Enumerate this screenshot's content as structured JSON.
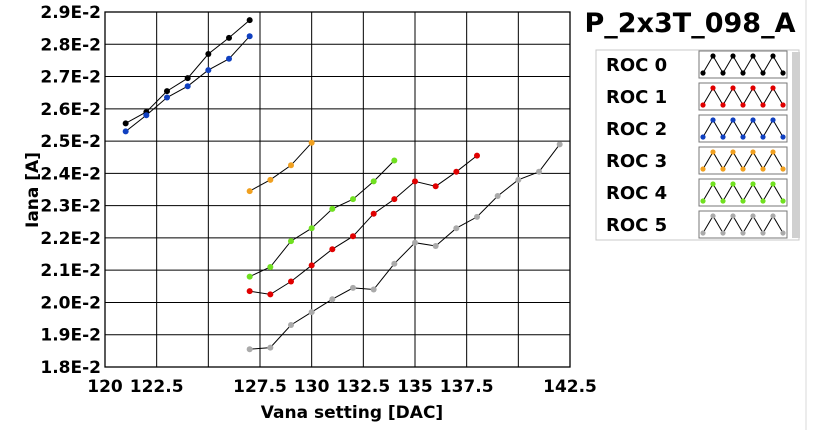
{
  "chart_data": {
    "type": "line",
    "title": "P_2x3T_098_A",
    "xlabel": "Vana setting [DAC]",
    "ylabel": "Iana [A]",
    "xlim": [
      120,
      142.5
    ],
    "ylim": [
      0.018,
      0.029
    ],
    "x_ticks": [
      {
        "v": 120,
        "label": "120"
      },
      {
        "v": 122.5,
        "label": "122.5"
      },
      {
        "v": 127.5,
        "label": "127.5"
      },
      {
        "v": 130,
        "label": "130"
      },
      {
        "v": 132.5,
        "label": "132.5"
      },
      {
        "v": 135,
        "label": "135"
      },
      {
        "v": 137.5,
        "label": "137.5"
      },
      {
        "v": 142.5,
        "label": "142.5"
      }
    ],
    "x_grid": [
      120,
      122.5,
      125,
      127.5,
      130,
      132.5,
      135,
      137.5,
      140,
      142.5
    ],
    "y_ticks": [
      {
        "v": 0.018,
        "label": "1.8E-2"
      },
      {
        "v": 0.019,
        "label": "1.9E-2"
      },
      {
        "v": 0.02,
        "label": "2.0E-2"
      },
      {
        "v": 0.021,
        "label": "2.1E-2"
      },
      {
        "v": 0.022,
        "label": "2.2E-2"
      },
      {
        "v": 0.023,
        "label": "2.3E-2"
      },
      {
        "v": 0.024,
        "label": "2.4E-2"
      },
      {
        "v": 0.025,
        "label": "2.5E-2"
      },
      {
        "v": 0.026,
        "label": "2.6E-2"
      },
      {
        "v": 0.027,
        "label": "2.7E-2"
      },
      {
        "v": 0.028,
        "label": "2.8E-2"
      },
      {
        "v": 0.029,
        "label": "2.9E-2"
      }
    ],
    "grid": true,
    "legend_position": "right",
    "series": [
      {
        "name": "ROC 0",
        "color": "#000000",
        "x": [
          121,
          122,
          123,
          124,
          125,
          126,
          127
        ],
        "y": [
          0.02555,
          0.0259,
          0.02655,
          0.02695,
          0.0277,
          0.0282,
          0.02875
        ]
      },
      {
        "name": "ROC 1",
        "color": "#e00000",
        "x": [
          127,
          128,
          129,
          130,
          131,
          132,
          133,
          134,
          135,
          136,
          137,
          138
        ],
        "y": [
          0.02035,
          0.02025,
          0.02065,
          0.02115,
          0.02165,
          0.02205,
          0.02275,
          0.0232,
          0.02375,
          0.0236,
          0.02405,
          0.02455
        ]
      },
      {
        "name": "ROC 2",
        "color": "#1040c0",
        "x": [
          121,
          122,
          123,
          124,
          125,
          126,
          127
        ],
        "y": [
          0.0253,
          0.0258,
          0.02635,
          0.0267,
          0.0272,
          0.02755,
          0.02825
        ]
      },
      {
        "name": "ROC 3",
        "color": "#f0a020",
        "x": [
          127,
          128,
          129,
          130
        ],
        "y": [
          0.02345,
          0.0238,
          0.02425,
          0.02495
        ]
      },
      {
        "name": "ROC 4",
        "color": "#70e020",
        "x": [
          127,
          128,
          129,
          130,
          131,
          132,
          133,
          134
        ],
        "y": [
          0.0208,
          0.0211,
          0.0219,
          0.0223,
          0.0229,
          0.0232,
          0.02375,
          0.0244
        ]
      },
      {
        "name": "ROC 5",
        "color": "#aaaaaa",
        "x": [
          127,
          128,
          129,
          130,
          131,
          132,
          133,
          134,
          135,
          136,
          137,
          138,
          139,
          140,
          141,
          142
        ],
        "y": [
          0.01855,
          0.0186,
          0.0193,
          0.0197,
          0.0201,
          0.02045,
          0.0204,
          0.0212,
          0.02185,
          0.02175,
          0.0223,
          0.02265,
          0.0233,
          0.0238,
          0.02405,
          0.0249
        ]
      }
    ]
  }
}
